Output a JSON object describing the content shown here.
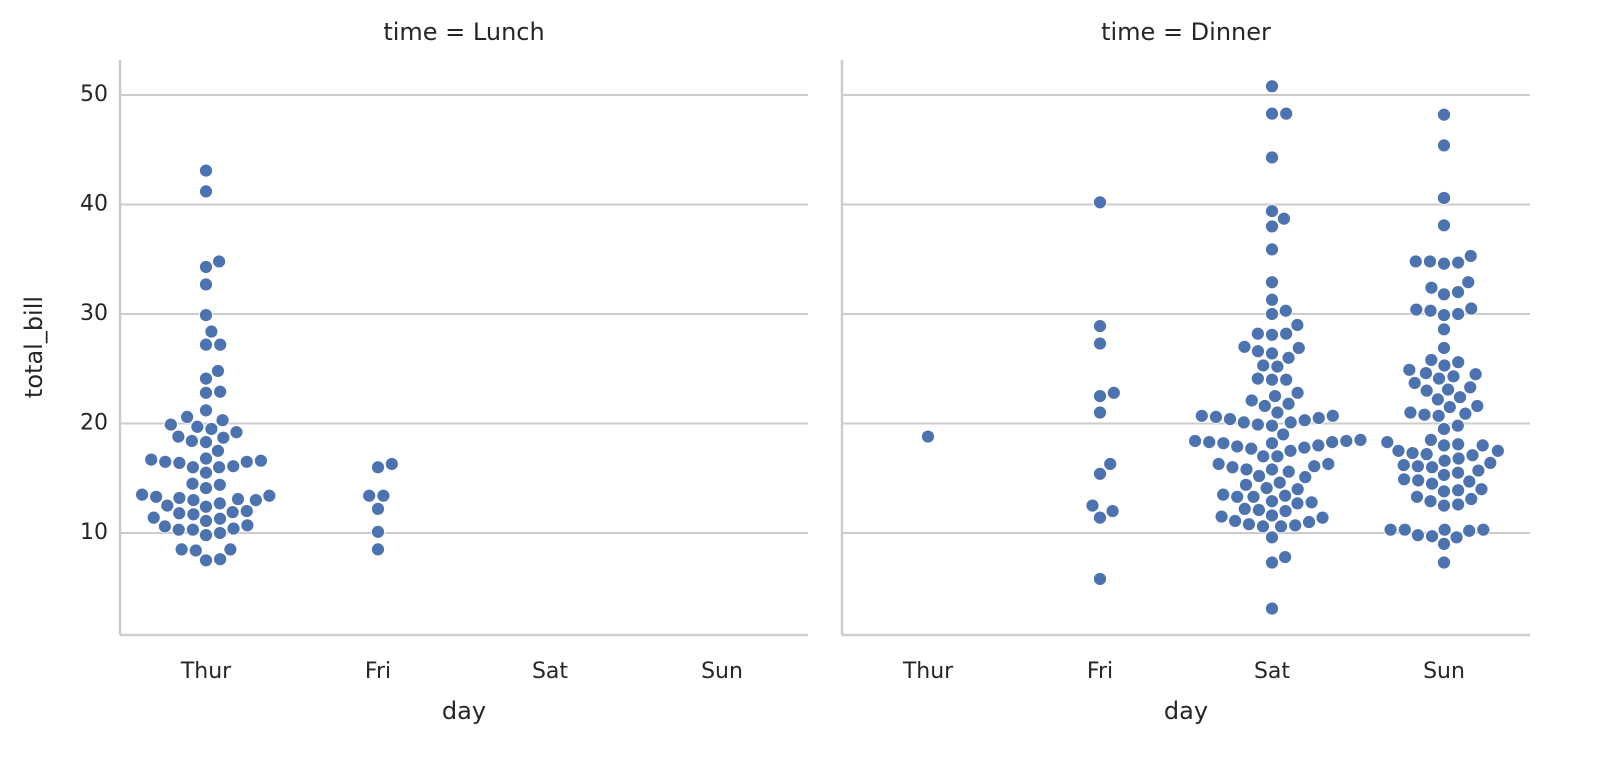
{
  "chart_data": [
    {
      "type": "swarm",
      "title": "time = Lunch",
      "xlabel": "day",
      "ylabel": "total_bill",
      "categories": [
        "Thur",
        "Fri",
        "Sat",
        "Sun"
      ],
      "color": "#4c72b0",
      "ylim": [
        0.68,
        53.2
      ],
      "yticks": [
        10,
        20,
        30,
        40,
        50
      ],
      "grid": true,
      "values": [
        [
          43.1,
          41.2,
          34.8,
          34.3,
          32.7,
          29.9,
          28.4,
          27.2,
          27.2,
          24.8,
          24.1,
          22.9,
          22.8,
          21.2,
          20.6,
          20.3,
          19.9,
          19.7,
          19.5,
          19.2,
          18.8,
          18.7,
          18.4,
          18.3,
          17.5,
          16.8,
          16.7,
          16.6,
          16.5,
          16.5,
          16.4,
          16.1,
          16.0,
          16.0,
          15.5,
          14.5,
          14.4,
          14.1,
          13.5,
          13.4,
          13.3,
          13.2,
          13.1,
          13.0,
          13.0,
          12.7,
          12.5,
          12.4,
          12.0,
          11.9,
          11.8,
          11.7,
          11.4,
          11.3,
          11.1,
          10.7,
          10.6,
          10.4,
          10.3,
          10.3,
          10.0,
          9.8,
          8.5,
          8.5,
          8.4,
          7.6,
          7.5
        ],
        [
          16.3,
          16.0,
          13.4,
          13.4,
          12.2,
          10.1,
          8.5
        ],
        [],
        []
      ]
    },
    {
      "type": "swarm",
      "title": "time = Dinner",
      "xlabel": "day",
      "categories": [
        "Thur",
        "Fri",
        "Sat",
        "Sun"
      ],
      "color": "#4c72b0",
      "ylim": [
        0.68,
        53.2
      ],
      "yticks": [
        10,
        20,
        30,
        40,
        50
      ],
      "grid": true,
      "values": [
        [
          18.8
        ],
        [
          40.2,
          28.9,
          27.3,
          22.8,
          22.5,
          21.0,
          16.3,
          15.4,
          12.5,
          12.0,
          11.4,
          5.8
        ],
        [
          50.8,
          48.3,
          48.3,
          44.3,
          39.4,
          38.7,
          38.0,
          35.9,
          32.9,
          31.3,
          30.3,
          30.0,
          29.0,
          28.2,
          28.2,
          28.1,
          27.0,
          26.9,
          26.6,
          26.4,
          26.0,
          25.3,
          25.2,
          24.1,
          24.0,
          24.0,
          22.8,
          22.5,
          22.1,
          21.8,
          21.6,
          21.0,
          20.7,
          20.7,
          20.6,
          20.5,
          20.4,
          20.3,
          20.1,
          20.1,
          19.9,
          19.8,
          19.0,
          18.5,
          18.4,
          18.4,
          18.3,
          18.3,
          18.2,
          18.2,
          18.0,
          17.9,
          17.8,
          17.7,
          17.5,
          17.0,
          17.0,
          16.3,
          16.3,
          16.1,
          16.0,
          15.8,
          15.8,
          15.6,
          15.2,
          15.1,
          14.6,
          14.4,
          14.1,
          14.0,
          13.5,
          13.4,
          13.3,
          13.3,
          12.9,
          12.8,
          12.7,
          12.2,
          12.1,
          12.0,
          11.6,
          11.5,
          11.4,
          11.1,
          11.0,
          10.8,
          10.7,
          10.6,
          10.6,
          9.6,
          7.8,
          7.3,
          3.1
        ],
        [
          48.2,
          45.4,
          40.6,
          38.1,
          35.3,
          34.8,
          34.8,
          34.7,
          34.6,
          32.9,
          32.4,
          32.0,
          31.8,
          30.5,
          30.4,
          30.3,
          30.0,
          29.9,
          28.6,
          26.9,
          25.8,
          25.6,
          25.3,
          24.9,
          24.6,
          24.5,
          24.3,
          24.1,
          23.7,
          23.3,
          23.1,
          23.0,
          22.4,
          22.2,
          21.6,
          21.5,
          21.0,
          20.9,
          20.8,
          20.7,
          19.8,
          19.5,
          18.5,
          18.3,
          18.1,
          18.0,
          18.0,
          17.5,
          17.5,
          17.3,
          17.2,
          17.1,
          16.8,
          16.6,
          16.4,
          16.2,
          16.1,
          16.0,
          15.7,
          15.5,
          15.3,
          14.9,
          14.8,
          14.7,
          14.5,
          14.0,
          13.9,
          13.8,
          13.3,
          13.1,
          12.9,
          12.6,
          12.5,
          10.3,
          10.3,
          10.3,
          10.3,
          10.2,
          9.8,
          9.7,
          9.6,
          9.0,
          7.3
        ]
      ]
    }
  ]
}
